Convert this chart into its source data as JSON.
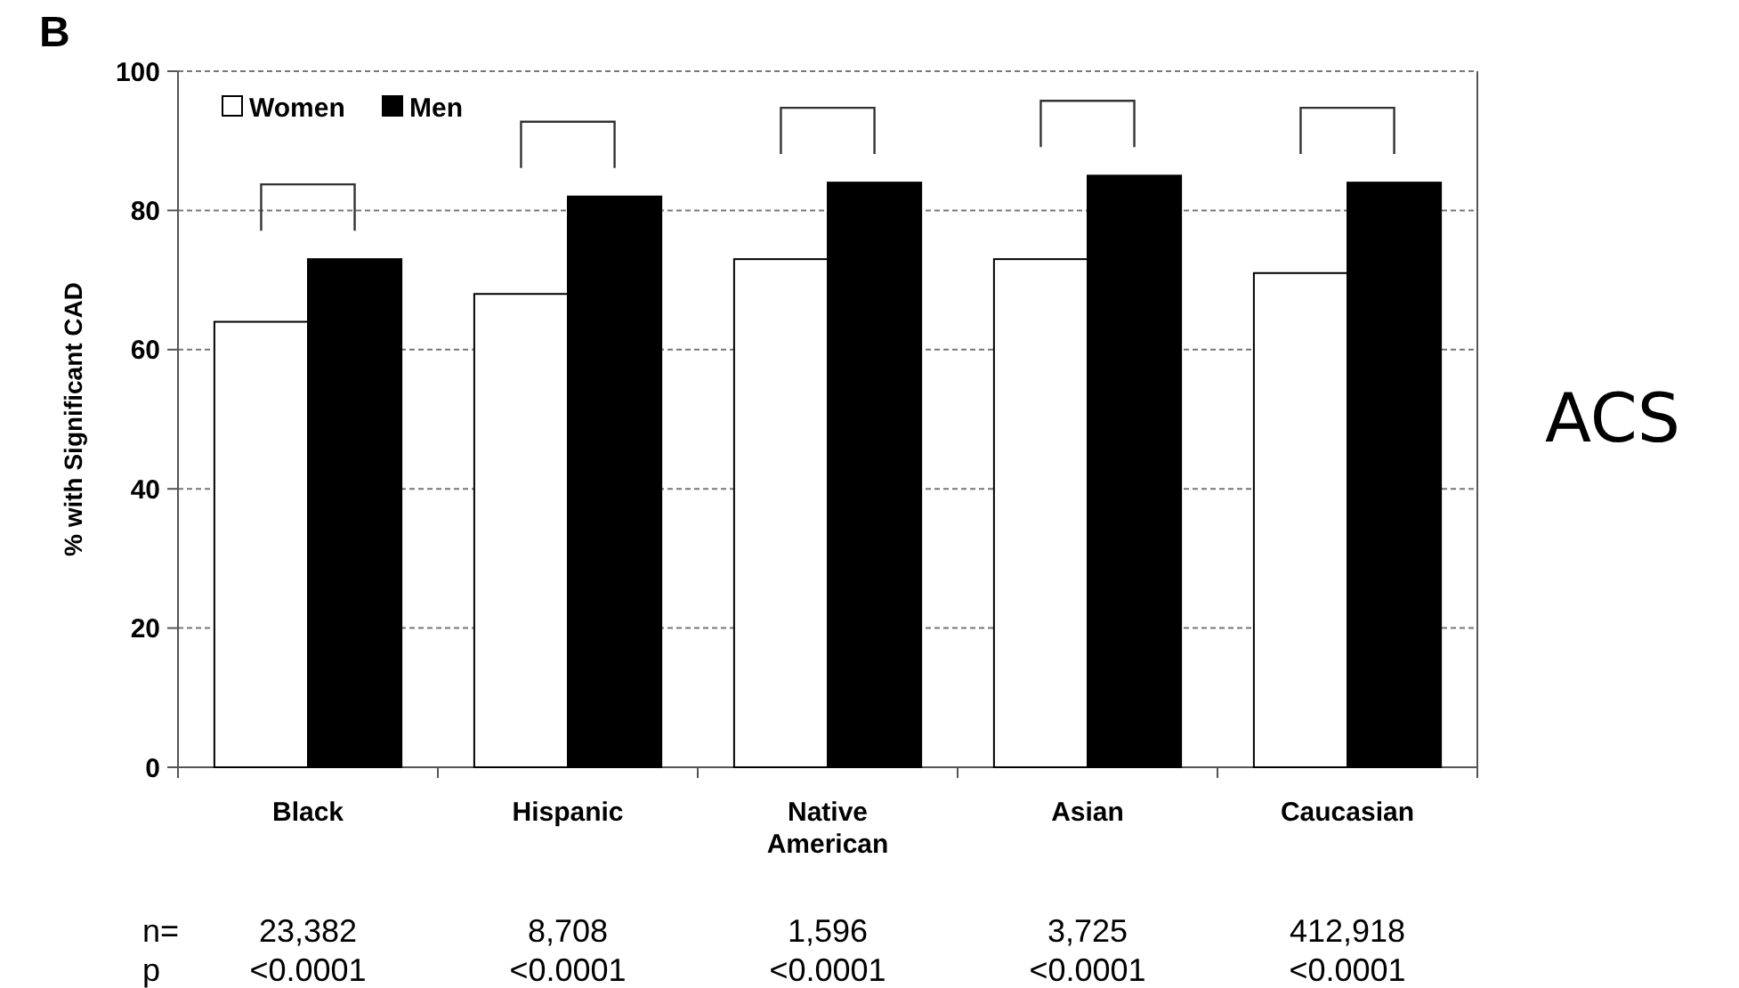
{
  "chart_data": {
    "type": "bar",
    "ylabel": "% with Significant CAD",
    "categories": [
      "Black",
      "Hispanic",
      "Native American",
      "Asian",
      "Caucasian"
    ],
    "series": [
      {
        "name": "Women",
        "color": "#ffffff",
        "values": [
          64,
          68,
          73,
          73,
          71
        ]
      },
      {
        "name": "Men",
        "color": "#000000",
        "values": [
          73,
          82,
          84,
          85,
          84
        ]
      }
    ],
    "ylim": [
      0,
      100
    ],
    "yticks": [
      0,
      20,
      40,
      60,
      80,
      100
    ],
    "grid": "y",
    "legend": "top left",
    "annotations": [
      "B",
      "ACS",
      "n=",
      "23,382",
      "8,708",
      "1,596",
      "3,725",
      "412,918",
      "p",
      "<0.0001",
      "<0.0001",
      "<0.0001",
      "<0.0001",
      "<0.0001"
    ]
  }
}
